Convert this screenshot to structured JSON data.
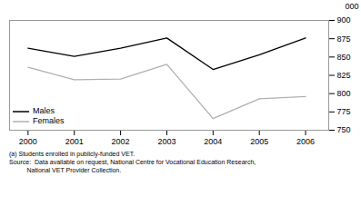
{
  "chart_data": {
    "type": "line",
    "x": [
      2000,
      2001,
      2002,
      2003,
      2004,
      2005,
      2006
    ],
    "series": [
      {
        "name": "Males",
        "color": "#000000",
        "values": [
          862,
          851,
          862,
          876,
          833,
          853,
          876
        ]
      },
      {
        "name": "Females",
        "color": "#b0b0b0",
        "values": [
          836,
          819,
          820,
          840,
          766,
          793,
          796
        ]
      }
    ],
    "xlim": [
      1999.6,
      2006.5
    ],
    "xticks": [
      2000,
      2001,
      2002,
      2003,
      2004,
      2005,
      2006
    ],
    "ylim": [
      750,
      900
    ],
    "yticks": [
      750,
      775,
      800,
      825,
      850,
      875,
      900
    ],
    "ylabel": "000",
    "legend": "lower left",
    "annotations": [
      "(a) Students enrolled in publicly-funded VET.",
      "Source:  Data available on request, National Centre for Vocational Education Research,",
      "          National VET Provider Collection."
    ]
  }
}
